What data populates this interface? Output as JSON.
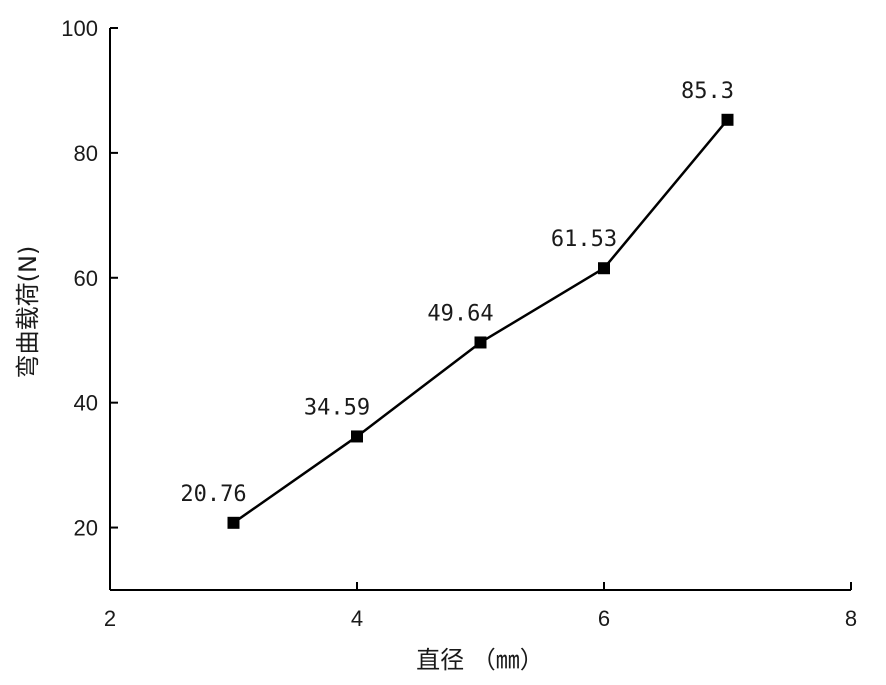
{
  "chart_data": {
    "type": "line",
    "xlabel": "直径 （㎜）",
    "ylabel": "弯曲载荷(N)",
    "xlim": [
      2,
      8
    ],
    "ylim": [
      10,
      100
    ],
    "xticks": [
      2,
      4,
      6,
      8
    ],
    "yticks": [
      20,
      40,
      60,
      80,
      100
    ],
    "x_tick_labels": [
      "2",
      "4",
      "6",
      "8"
    ],
    "y_tick_labels": [
      "20",
      "40",
      "60",
      "80",
      "100"
    ],
    "grid": false,
    "series": [
      {
        "marker": "square",
        "color": "#000000",
        "x": [
          3,
          4,
          5,
          6,
          7
        ],
        "y": [
          20.76,
          34.59,
          49.64,
          61.53,
          85.3
        ],
        "labels": [
          "20.76",
          "34.59",
          "49.64",
          "61.53",
          "85.3"
        ]
      }
    ]
  }
}
